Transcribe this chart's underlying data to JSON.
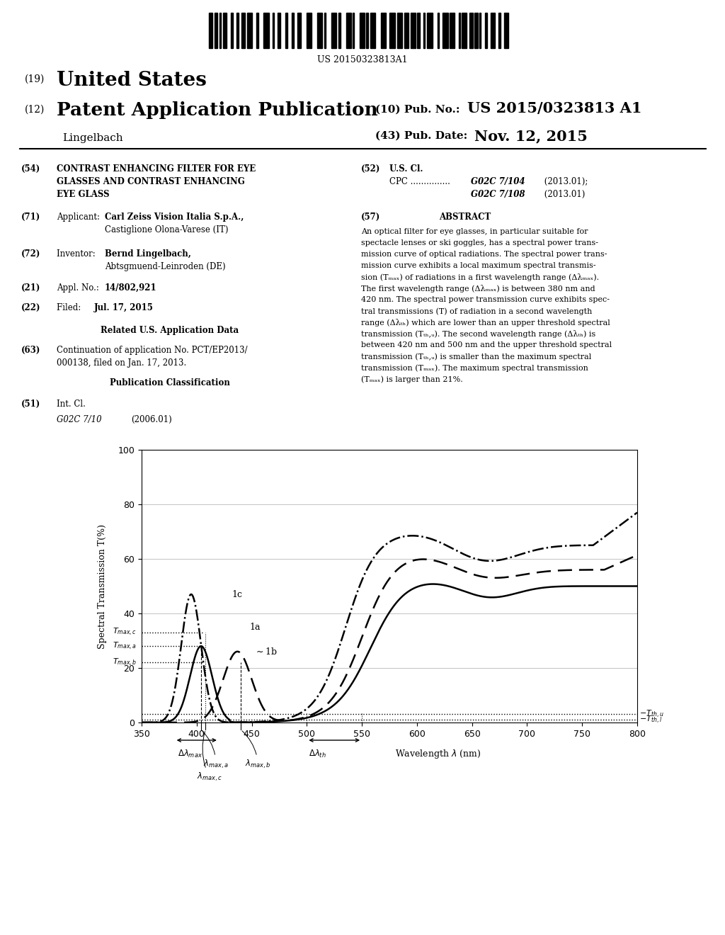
{
  "barcode_text": "US 20150323813A1",
  "title_number": "(19)",
  "title_country": "United States",
  "pub_type_number": "(12)",
  "pub_type": "Patent Application Publication",
  "pub_no_label": "(10) Pub. No.:",
  "pub_no": "US 2015/0323813 A1",
  "inventor_last": "Lingelbach",
  "pub_date_label": "(43) Pub. Date:",
  "pub_date": "Nov. 12, 2015",
  "chart_ylabel": "Spectral Transmission T(%)",
  "chart_xlabel": "Wavelength λ (nm)",
  "chart_xlim": [
    350,
    800
  ],
  "chart_ylim": [
    0,
    100
  ],
  "chart_xticks": [
    350,
    400,
    450,
    500,
    550,
    600,
    650,
    700,
    750,
    800
  ],
  "chart_yticks": [
    0,
    20,
    40,
    60,
    80,
    100
  ],
  "T_max_c": 33,
  "T_max_a": 28,
  "T_max_b": 22,
  "T_th_u": 3,
  "T_th_l": 1,
  "lambda_max_a": 404,
  "lambda_max_b": 440,
  "lambda_max_c": 408
}
